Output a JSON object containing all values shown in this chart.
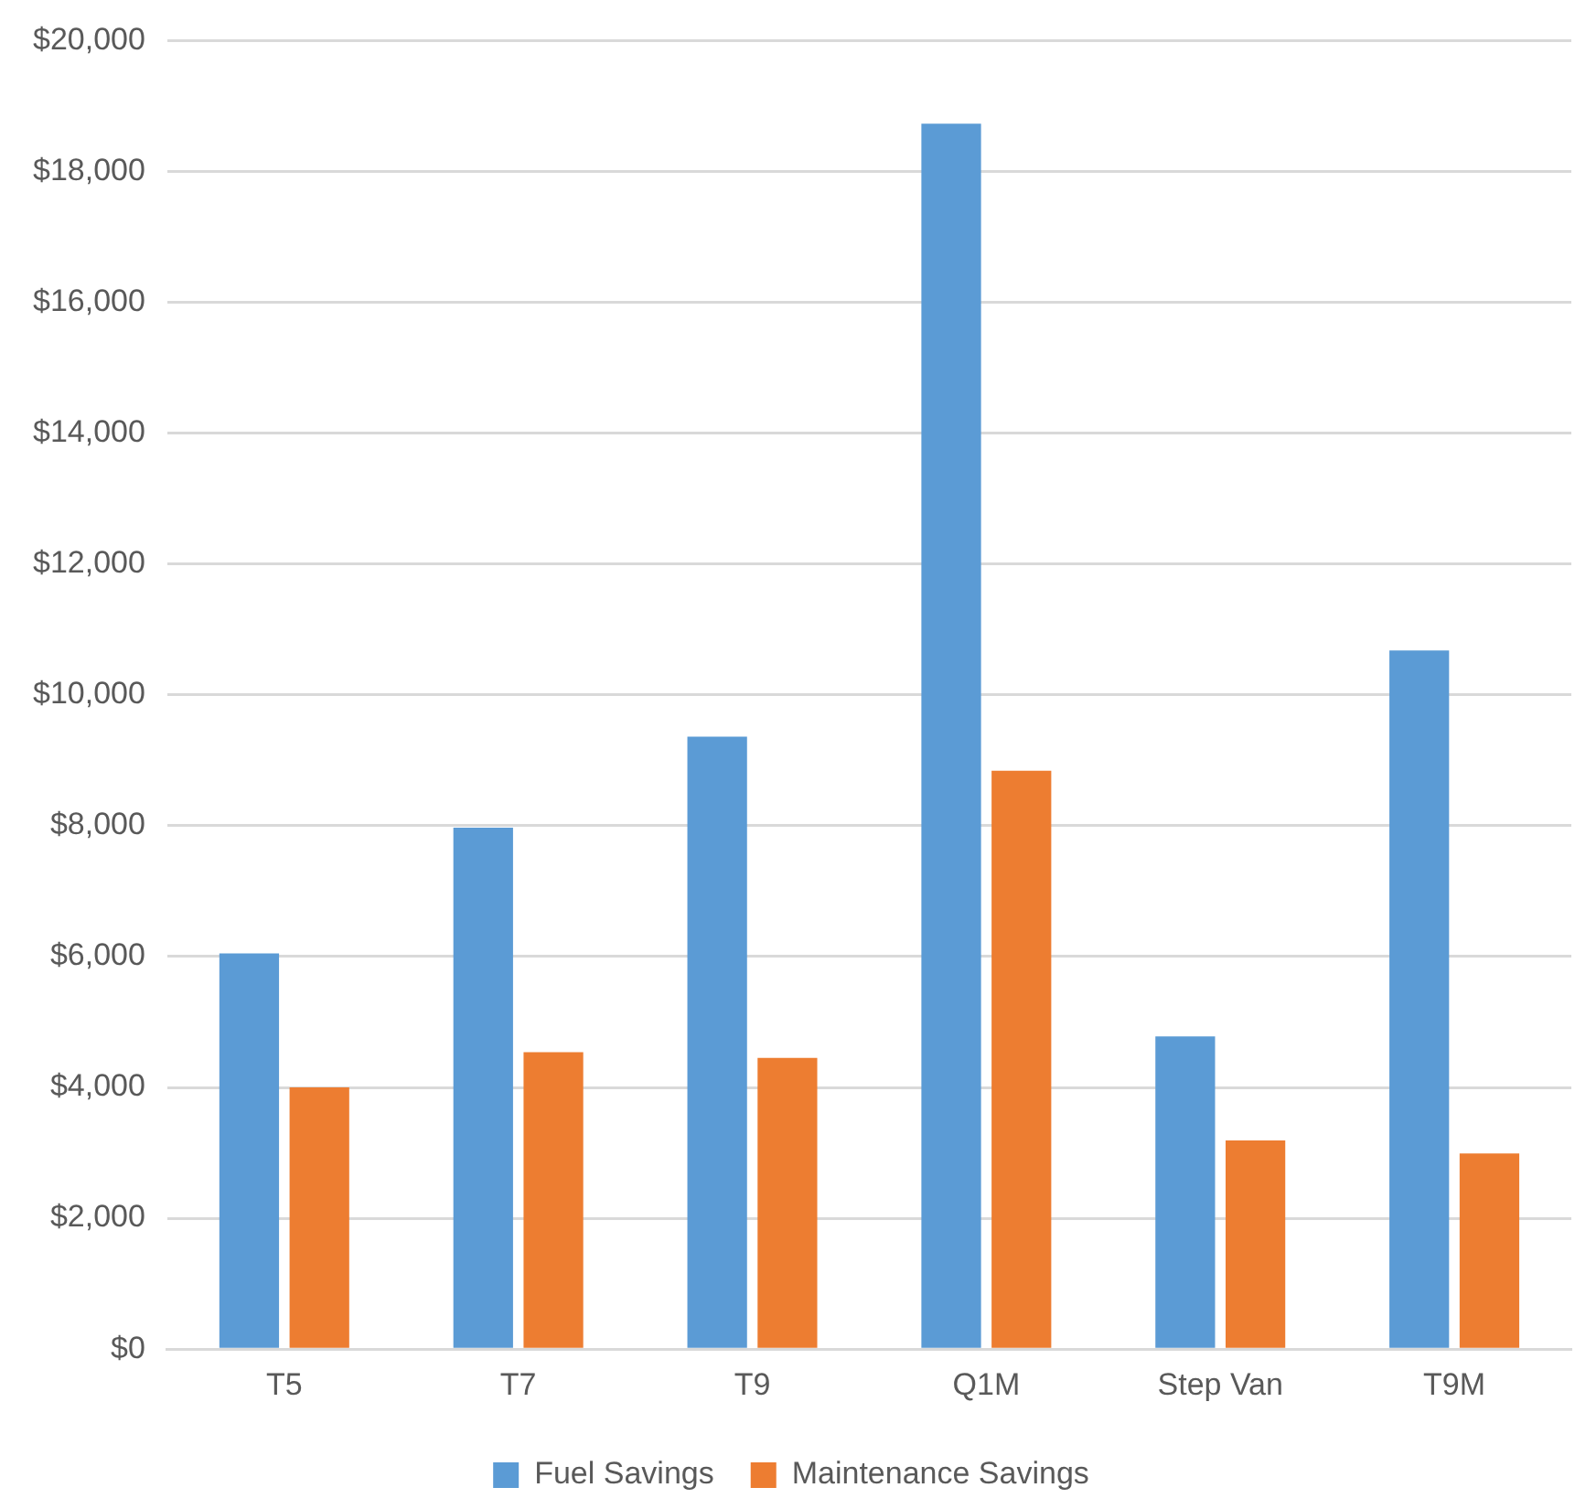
{
  "chart_data": {
    "type": "bar",
    "categories": [
      "T5",
      "T7",
      "T9",
      "Q1M",
      "Step Van",
      "T9M"
    ],
    "series": [
      {
        "name": "Fuel Savings",
        "color": "#5b9bd5",
        "values": [
          6050,
          7970,
          9360,
          18730,
          4780,
          10680
        ]
      },
      {
        "name": "Maintenance Savings",
        "color": "#ed7d31",
        "values": [
          4000,
          4540,
          4450,
          8840,
          3190,
          2990
        ]
      }
    ],
    "ylim": [
      0,
      20000
    ],
    "yticks": [
      {
        "value": 0,
        "label": "$0"
      },
      {
        "value": 2000,
        "label": "$2,000"
      },
      {
        "value": 4000,
        "label": "$4,000"
      },
      {
        "value": 6000,
        "label": "$6,000"
      },
      {
        "value": 8000,
        "label": "$8,000"
      },
      {
        "value": 10000,
        "label": "$10,000"
      },
      {
        "value": 12000,
        "label": "$12,000"
      },
      {
        "value": 14000,
        "label": "$14,000"
      },
      {
        "value": 16000,
        "label": "$16,000"
      },
      {
        "value": 18000,
        "label": "$18,000"
      },
      {
        "value": 20000,
        "label": "$20,000"
      }
    ],
    "grid": "y",
    "legend": "bottom"
  }
}
